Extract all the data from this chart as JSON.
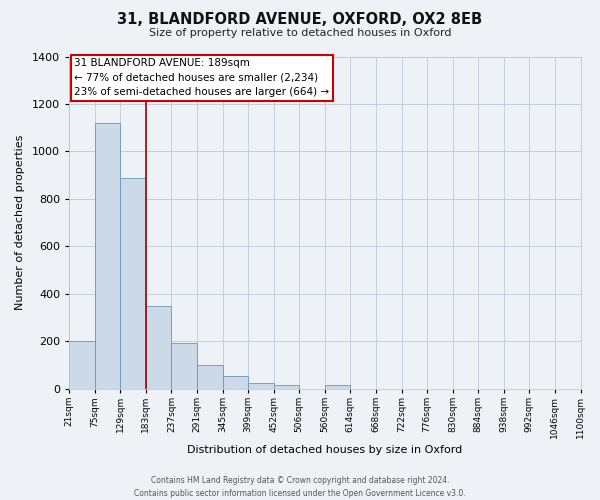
{
  "title": "31, BLANDFORD AVENUE, OXFORD, OX2 8EB",
  "subtitle": "Size of property relative to detached houses in Oxford",
  "xlabel": "Distribution of detached houses by size in Oxford",
  "ylabel": "Number of detached properties",
  "bar_color": "#ccd9e8",
  "bar_edge_color": "#6699bb",
  "background_color": "#eef2f7",
  "bins": [
    "21sqm",
    "75sqm",
    "129sqm",
    "183sqm",
    "237sqm",
    "291sqm",
    "345sqm",
    "399sqm",
    "452sqm",
    "506sqm",
    "560sqm",
    "614sqm",
    "668sqm",
    "722sqm",
    "776sqm",
    "830sqm",
    "884sqm",
    "938sqm",
    "992sqm",
    "1046sqm",
    "1100sqm"
  ],
  "values": [
    200,
    1120,
    890,
    350,
    195,
    100,
    55,
    25,
    15,
    0,
    15,
    0,
    0,
    0,
    0,
    0,
    0,
    0,
    0,
    0
  ],
  "ylim": [
    0,
    1400
  ],
  "yticks": [
    0,
    200,
    400,
    600,
    800,
    1000,
    1200,
    1400
  ],
  "annotation_line1": "31 BLANDFORD AVENUE: 189sqm",
  "annotation_line2": "← 77% of detached houses are smaller (2,234)",
  "annotation_line3": "23% of semi-detached houses are larger (664) →",
  "vline_bin_index": 3,
  "footer_line1": "Contains HM Land Registry data © Crown copyright and database right 2024.",
  "footer_line2": "Contains public sector information licensed under the Open Government Licence v3.0."
}
